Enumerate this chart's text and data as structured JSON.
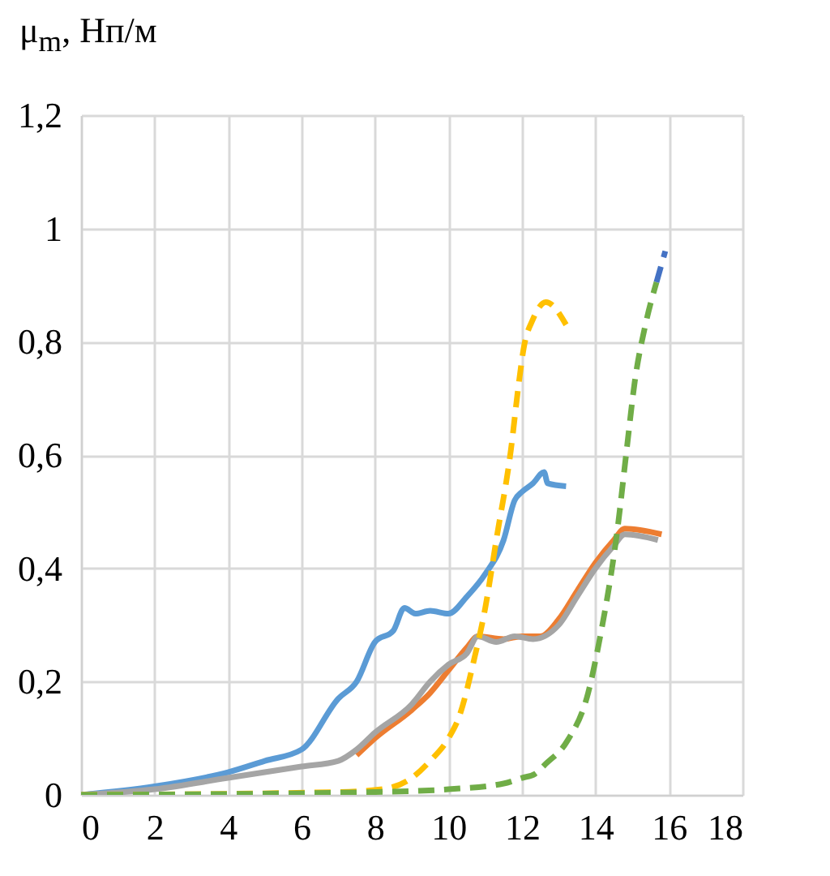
{
  "chart_data": {
    "type": "line",
    "ylabel": "μ$_{m}$, Нп/м",
    "x": [
      0,
      2,
      4,
      5,
      6,
      7,
      7.5,
      8,
      8.5,
      8.8,
      9.1,
      9.5,
      10,
      10.5,
      11,
      11.5,
      11.8,
      12,
      12.3,
      12.6,
      12.7,
      13.2
    ],
    "series": [
      {
        "color": "#5b9bd5",
        "line_style": "solid",
        "values": [
          0,
          0.015,
          0.04,
          0.06,
          0.08,
          0.17,
          0.2,
          0.27,
          0.29,
          0.33,
          0.32,
          0.325,
          0.32,
          0.35,
          0.39,
          0.45,
          0.52,
          0.535,
          0.55,
          0.57,
          0.55,
          0.545
        ]
      },
      {
        "color": "#ed7d31",
        "line_style": "solid",
        "x": [
          7.5,
          8,
          9,
          9.5,
          10,
          10.5,
          10.8,
          11.5,
          12,
          12.5,
          13,
          13.5,
          14,
          14.5,
          14.8,
          15.8
        ],
        "values": [
          0.07,
          0.1,
          0.15,
          0.18,
          0.22,
          0.26,
          0.28,
          0.275,
          0.28,
          0.28,
          0.31,
          0.36,
          0.41,
          0.45,
          0.47,
          0.46
        ]
      },
      {
        "color": "#a5a5a5",
        "line_style": "solid",
        "x": [
          0,
          2,
          4,
          6,
          7,
          7.5,
          8,
          9,
          9.5,
          10,
          10.5,
          10.8,
          11.3,
          11.8,
          12.3,
          13,
          13.5,
          14,
          14.5,
          14.8,
          15.7
        ],
        "values": [
          0,
          0.01,
          0.03,
          0.05,
          0.06,
          0.08,
          0.11,
          0.16,
          0.2,
          0.23,
          0.25,
          0.28,
          0.27,
          0.28,
          0.275,
          0.3,
          0.35,
          0.4,
          0.44,
          0.46,
          0.45
        ]
      },
      {
        "color": "#ffc000",
        "line_style": "dashed",
        "x": [
          0,
          7,
          8.2,
          9,
          9.5,
          10,
          10.3,
          10.7,
          11,
          11.3,
          11.7,
          11.9,
          12.05,
          12.3,
          12.65,
          13.2
        ],
        "values": [
          0,
          0.005,
          0.01,
          0.03,
          0.06,
          0.1,
          0.14,
          0.24,
          0.33,
          0.45,
          0.61,
          0.72,
          0.79,
          0.84,
          0.87,
          0.83
        ]
      },
      {
        "color": "#4472c4",
        "line_style": "dashed",
        "x": [
          15.66,
          15.9
        ],
        "values": [
          0.905,
          0.96
        ]
      },
      {
        "color": "#70ad47",
        "line_style": "dashed",
        "x": [
          0,
          8,
          10,
          11.5,
          12,
          12.35,
          12.65,
          13.23,
          13.8,
          14.1,
          14.6,
          14.85,
          15.07,
          15.36,
          15.66
        ],
        "values": [
          0,
          0.005,
          0.01,
          0.02,
          0.03,
          0.037,
          0.055,
          0.095,
          0.18,
          0.27,
          0.47,
          0.61,
          0.73,
          0.83,
          0.905
        ]
      }
    ],
    "xlim": [
      0,
      18
    ],
    "xticks": [
      0,
      2,
      4,
      6,
      8,
      10,
      12,
      14,
      16,
      18
    ],
    "ylim": [
      0,
      1.2
    ],
    "yticks": [
      0,
      {
        "value": 0.2,
        "label": "0,2"
      },
      {
        "value": 0.4,
        "label": "0,4"
      },
      {
        "value": 0.6,
        "label": "0,6"
      },
      {
        "value": 0.8,
        "label": "0,8"
      },
      1,
      {
        "value": 1.2,
        "label": "1,2"
      }
    ],
    "grid": true
  }
}
